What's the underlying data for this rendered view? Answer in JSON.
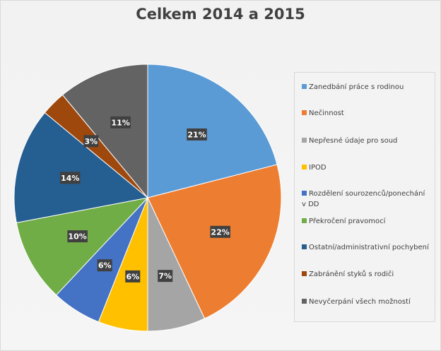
{
  "chart_data": {
    "type": "pie",
    "title": "Celkem 2014 a 2015",
    "legend_position": "right",
    "categories": [
      "Zanedbání práce s rodinou",
      "Nečinnost",
      "Nepřesné údaje pro soud",
      "IPOD",
      "Rozdělení sourozenců/ponechání v DD",
      "Překročení pravomocí",
      "Ostatní/administrativní pochybení",
      "Zabránění styků s rodiči",
      "Nevyčerpání všech možností"
    ],
    "values": [
      21,
      22,
      7,
      6,
      6,
      10,
      14,
      3,
      11
    ],
    "data_labels": [
      "21%",
      "22%",
      "7%",
      "6%",
      "6%",
      "10%",
      "14%",
      "3%",
      "11%"
    ],
    "colors": [
      "#5b9bd5",
      "#ed7d31",
      "#a5a5a5",
      "#ffc000",
      "#4472c4",
      "#70ad47",
      "#255e91",
      "#9e480e",
      "#636363"
    ]
  }
}
